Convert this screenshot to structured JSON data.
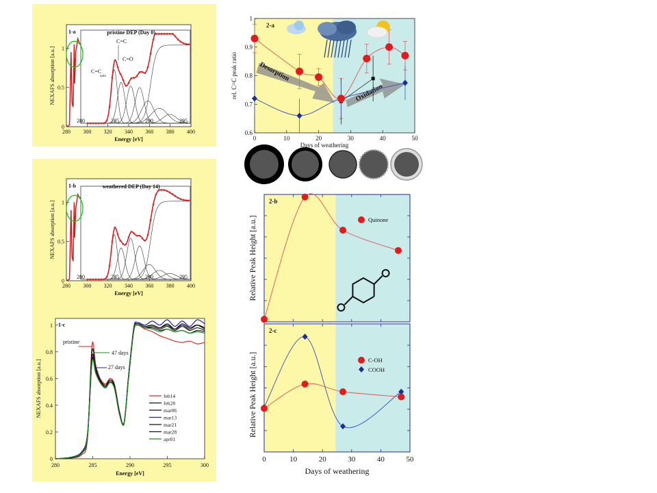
{
  "chart_data": [
    {
      "id": "1-a",
      "type": "line",
      "panel_label": "1-a",
      "title": "pristine DEP (Day 0)",
      "xlabel": "Energy [eV]",
      "ylabel": "NEXAFS absorption [a.u.]",
      "x_ticks": [
        "280",
        "300",
        "320",
        "340",
        "360",
        "380",
        "400"
      ],
      "y_ticks": [
        "0",
        "0.5",
        "1"
      ],
      "xlim": [
        280,
        400
      ],
      "ylim": [
        0,
        1.3
      ],
      "inset": {
        "x_ticks": [
          "280",
          "285",
          "290",
          "295"
        ],
        "xlim": [
          280,
          296
        ],
        "annotations": [
          "C=C",
          "C=O",
          "C=C"
        ],
        "annotation_subscript": "quin"
      },
      "series_curve": [
        [
          280,
          0
        ],
        [
          283,
          0.02
        ],
        [
          284.5,
          0.95
        ],
        [
          285.5,
          0.3
        ],
        [
          286.5,
          0.25
        ],
        [
          287.5,
          1.05
        ],
        [
          288,
          0.55
        ],
        [
          289,
          0.95
        ],
        [
          291,
          1.12
        ],
        [
          293,
          1.05
        ],
        [
          296,
          1.08
        ],
        [
          300,
          1.2
        ],
        [
          305,
          1.12
        ],
        [
          310,
          1.05
        ],
        [
          330,
          1.02
        ],
        [
          360,
          0.99
        ],
        [
          400,
          0.98
        ]
      ]
    },
    {
      "id": "1-b",
      "type": "line",
      "panel_label": "1-b",
      "title": "weathered DEP (Day 14)",
      "xlabel": "Energy [eV]",
      "ylabel": "NEXAFS absorption [a.u.]",
      "x_ticks": [
        "280",
        "300",
        "320",
        "340",
        "360",
        "380",
        "400"
      ],
      "y_ticks": [
        "0",
        "0.5",
        "1"
      ],
      "xlim": [
        280,
        400
      ],
      "ylim": [
        0,
        1.3
      ],
      "inset": {
        "x_ticks": [
          "280",
          "285",
          "290",
          "295"
        ],
        "xlim": [
          280,
          296
        ]
      },
      "series_curve": [
        [
          280,
          0
        ],
        [
          283,
          0.02
        ],
        [
          284.5,
          0.9
        ],
        [
          285.5,
          0.3
        ],
        [
          286.5,
          0.25
        ],
        [
          287.5,
          1.0
        ],
        [
          288,
          0.55
        ],
        [
          289,
          0.92
        ],
        [
          291,
          1.1
        ],
        [
          293,
          1.05
        ],
        [
          296,
          1.1
        ],
        [
          300,
          1.18
        ],
        [
          305,
          1.1
        ],
        [
          310,
          1.04
        ],
        [
          330,
          1.02
        ],
        [
          360,
          0.99
        ],
        [
          400,
          0.98
        ]
      ]
    },
    {
      "id": "1-c",
      "type": "line",
      "panel_label": "1-c",
      "xlabel": "Energy [eV]",
      "ylabel": "NEXAFS absorption [a.u.]",
      "x_ticks": [
        "280",
        "285",
        "290",
        "295",
        "300"
      ],
      "y_ticks": [
        "0",
        "0.2",
        "0.4",
        "0.6",
        "0.8",
        "1"
      ],
      "xlim": [
        280,
        300
      ],
      "ylim": [
        0,
        1.05
      ],
      "annotations": [
        "pristine",
        "47 days",
        "27 days"
      ],
      "legend_position": "bottom-right",
      "series": [
        {
          "name": "feb14",
          "color": "#d43030",
          "values": [
            [
              280,
              0
            ],
            [
              282,
              0.005
            ],
            [
              283.5,
              0.03
            ],
            [
              284.3,
              0.15
            ],
            [
              284.9,
              0.85
            ],
            [
              285.4,
              0.7
            ],
            [
              286,
              0.6
            ],
            [
              286.7,
              0.56
            ],
            [
              287.3,
              0.6
            ],
            [
              287.9,
              0.56
            ],
            [
              288.6,
              0.35
            ],
            [
              289.2,
              0.26
            ],
            [
              289.8,
              0.6
            ],
            [
              290.5,
              0.95
            ],
            [
              291,
              1.0
            ],
            [
              292,
              0.97
            ],
            [
              293,
              0.95
            ],
            [
              294,
              0.92
            ],
            [
              295,
              0.9
            ],
            [
              296,
              0.88
            ],
            [
              297,
              0.87
            ],
            [
              298,
              0.88
            ],
            [
              299,
              0.86
            ],
            [
              300,
              0.87
            ]
          ]
        },
        {
          "name": "feb28",
          "color": "#111111",
          "values": [
            [
              280,
              0
            ],
            [
              282,
              0.005
            ],
            [
              283.5,
              0.04
            ],
            [
              284.3,
              0.17
            ],
            [
              284.9,
              0.8
            ],
            [
              285.4,
              0.68
            ],
            [
              286,
              0.59
            ],
            [
              286.7,
              0.55
            ],
            [
              287.3,
              0.59
            ],
            [
              287.9,
              0.55
            ],
            [
              288.6,
              0.35
            ],
            [
              289.2,
              0.27
            ],
            [
              289.8,
              0.6
            ],
            [
              290.5,
              0.96
            ],
            [
              291,
              1.0
            ],
            [
              292,
              0.98
            ],
            [
              293,
              0.98
            ],
            [
              294,
              0.96
            ],
            [
              295,
              0.97
            ],
            [
              296,
              0.95
            ],
            [
              297,
              0.96
            ],
            [
              298,
              0.94
            ],
            [
              299,
              0.96
            ],
            [
              300,
              0.95
            ]
          ]
        },
        {
          "name": "mar06",
          "color": "#111111",
          "values": [
            [
              280,
              0
            ],
            [
              282,
              0.01
            ],
            [
              283.5,
              0.05
            ],
            [
              284.3,
              0.18
            ],
            [
              284.9,
              0.76
            ],
            [
              285.4,
              0.66
            ],
            [
              286,
              0.58
            ],
            [
              286.7,
              0.54
            ],
            [
              287.3,
              0.58
            ],
            [
              287.9,
              0.54
            ],
            [
              288.6,
              0.34
            ],
            [
              289.2,
              0.27
            ],
            [
              289.8,
              0.62
            ],
            [
              290.5,
              0.97
            ],
            [
              291,
              1.01
            ],
            [
              292,
              0.99
            ],
            [
              293,
              1.0
            ],
            [
              294,
              0.98
            ],
            [
              295,
              1.01
            ],
            [
              296,
              0.97
            ],
            [
              297,
              1.0
            ],
            [
              298,
              0.97
            ],
            [
              299,
              1.0
            ],
            [
              300,
              0.98
            ]
          ]
        },
        {
          "name": "mar13",
          "color": "#22229a",
          "values": [
            [
              280,
              0
            ],
            [
              282,
              0.01
            ],
            [
              283.5,
              0.05
            ],
            [
              284.3,
              0.19
            ],
            [
              284.9,
              0.74
            ],
            [
              285.4,
              0.65
            ],
            [
              286,
              0.57
            ],
            [
              286.7,
              0.53
            ],
            [
              287.3,
              0.57
            ],
            [
              287.9,
              0.53
            ],
            [
              288.6,
              0.34
            ],
            [
              289.2,
              0.27
            ],
            [
              289.8,
              0.62
            ],
            [
              290.5,
              0.98
            ],
            [
              291,
              1.02
            ],
            [
              292,
              1.0
            ],
            [
              293,
              1.03
            ],
            [
              294,
              1.0
            ],
            [
              295,
              1.04
            ],
            [
              296,
              0.99
            ],
            [
              297,
              1.03
            ],
            [
              298,
              0.99
            ],
            [
              299,
              1.04
            ],
            [
              300,
              1.01
            ]
          ]
        },
        {
          "name": "mar21",
          "color": "#111111",
          "values": [
            [
              280,
              0
            ],
            [
              282,
              0.01
            ],
            [
              283.5,
              0.04
            ],
            [
              284.3,
              0.18
            ],
            [
              284.9,
              0.73
            ],
            [
              285.4,
              0.64
            ],
            [
              286,
              0.57
            ],
            [
              286.7,
              0.53
            ],
            [
              287.3,
              0.57
            ],
            [
              287.9,
              0.53
            ],
            [
              288.6,
              0.33
            ],
            [
              289.2,
              0.27
            ],
            [
              289.8,
              0.61
            ],
            [
              290.5,
              0.97
            ],
            [
              291,
              1.01
            ],
            [
              292,
              0.99
            ],
            [
              293,
              1.0
            ],
            [
              294,
              0.98
            ],
            [
              295,
              1.0
            ],
            [
              296,
              0.97
            ],
            [
              297,
              1.01
            ],
            [
              298,
              0.98
            ],
            [
              299,
              1.0
            ],
            [
              300,
              0.97
            ]
          ]
        },
        {
          "name": "mar28",
          "color": "#111111",
          "values": [
            [
              280,
              0
            ],
            [
              282,
              0.01
            ],
            [
              283.5,
              0.04
            ],
            [
              284.3,
              0.17
            ],
            [
              284.9,
              0.72
            ],
            [
              285.4,
              0.64
            ],
            [
              286,
              0.57
            ],
            [
              286.7,
              0.53
            ],
            [
              287.3,
              0.57
            ],
            [
              287.9,
              0.53
            ],
            [
              288.6,
              0.33
            ],
            [
              289.2,
              0.27
            ],
            [
              289.8,
              0.61
            ],
            [
              290.5,
              0.96
            ],
            [
              291,
              1.0
            ],
            [
              292,
              0.98
            ],
            [
              293,
              0.99
            ],
            [
              294,
              0.97
            ],
            [
              295,
              0.99
            ],
            [
              296,
              0.96
            ],
            [
              297,
              0.99
            ],
            [
              298,
              0.96
            ],
            [
              299,
              0.98
            ],
            [
              300,
              0.96
            ]
          ]
        },
        {
          "name": "apr01",
          "color": "#1f8a1f",
          "values": [
            [
              280,
              0
            ],
            [
              282,
              0.01
            ],
            [
              283.5,
              0.04
            ],
            [
              284.3,
              0.17
            ],
            [
              284.9,
              0.72
            ],
            [
              285.4,
              0.64
            ],
            [
              286,
              0.57
            ],
            [
              286.7,
              0.53
            ],
            [
              287.3,
              0.57
            ],
            [
              287.9,
              0.53
            ],
            [
              288.6,
              0.33
            ],
            [
              289.2,
              0.27
            ],
            [
              289.8,
              0.6
            ],
            [
              290.5,
              0.96
            ],
            [
              291,
              1.0
            ],
            [
              292,
              0.98
            ],
            [
              293,
              0.97
            ],
            [
              294,
              0.95
            ],
            [
              295,
              0.97
            ],
            [
              296,
              0.95
            ],
            [
              297,
              0.96
            ],
            [
              298,
              0.94
            ],
            [
              299,
              0.95
            ],
            [
              300,
              0.94
            ]
          ]
        }
      ]
    },
    {
      "id": "2-a",
      "type": "scatter",
      "panel_label": "2-a",
      "xlabel": "Days of weathering",
      "ylabel": "rel. C=C peak ratio",
      "x_ticks": [
        "0",
        "10",
        "20",
        "30",
        "40",
        "50"
      ],
      "y_ticks": [
        "0.6",
        "0.7",
        "0.8",
        "0.9",
        "1"
      ],
      "xlim": [
        0,
        50
      ],
      "ylim": [
        0.6,
        1.0
      ],
      "arrow_labels": [
        "Desorption",
        "Oxidation"
      ],
      "series": [
        {
          "marker": "circle",
          "color": "#e21c1c",
          "points": [
            [
              0,
              0.93,
              0.05
            ],
            [
              14,
              0.815,
              0.06
            ],
            [
              20,
              0.795,
              0.03
            ],
            [
              27,
              0.72,
              0.07
            ],
            [
              35,
              0.86,
              0.05
            ],
            [
              42,
              0.9,
              0.06
            ],
            [
              47,
              0.87,
              0.05
            ]
          ]
        },
        {
          "marker": "diamond",
          "color": "#1c2d9a",
          "points": [
            [
              0,
              0.72
            ],
            [
              14,
              0.66
            ],
            [
              27,
              0.72
            ],
            [
              47,
              0.775
            ]
          ]
        },
        {
          "marker": "square",
          "color": "#111111",
          "points": [
            [
              27,
              0.71
            ],
            [
              37,
              0.79
            ]
          ]
        }
      ]
    },
    {
      "id": "2-b",
      "type": "scatter",
      "panel_label": "2-b",
      "ylabel": "Relative Peak Height [a.u.]",
      "xlim": [
        0,
        50
      ],
      "ylim": [
        0,
        1
      ],
      "series": [
        {
          "name": "Quinone",
          "color": "#e21c1c",
          "points": [
            [
              0,
              0.02
            ],
            [
              14,
              0.98
            ],
            [
              27,
              0.72
            ],
            [
              46,
              0.56
            ]
          ]
        }
      ]
    },
    {
      "id": "2-c",
      "type": "scatter",
      "panel_label": "2-c",
      "xlabel": "Days of weathering",
      "ylabel": "Relative Peak Height [a.u.]",
      "x_ticks": [
        "0",
        "10",
        "20",
        "30",
        "40",
        "50"
      ],
      "xlim": [
        0,
        50
      ],
      "ylim": [
        0,
        1
      ],
      "series": [
        {
          "name": "C-OH",
          "color": "#e21c1c",
          "marker": "circle",
          "points": [
            [
              0,
              0.34
            ],
            [
              14,
              0.53
            ],
            [
              27,
              0.47
            ],
            [
              47,
              0.43
            ]
          ]
        },
        {
          "name": "COOH",
          "color": "#1c2d9a",
          "marker": "diamond",
          "points": [
            [
              0,
              0.35
            ],
            [
              14,
              0.9
            ],
            [
              27,
              0.2
            ],
            [
              47,
              0.47
            ]
          ]
        }
      ]
    }
  ]
}
